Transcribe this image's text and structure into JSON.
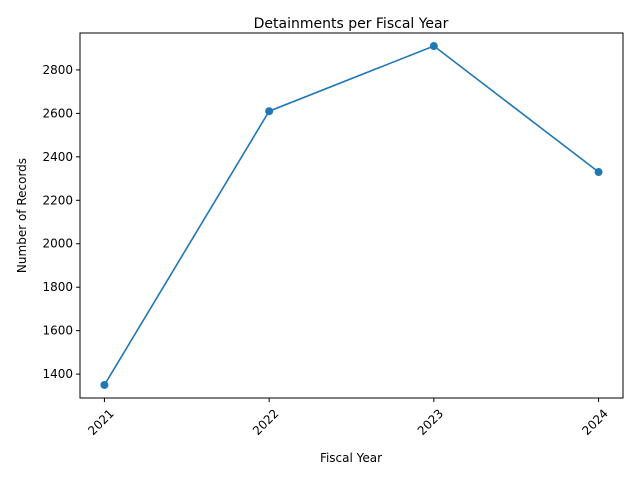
{
  "chart_data": {
    "type": "line",
    "title": "Detainments per Fiscal Year",
    "xlabel": "Fiscal Year",
    "ylabel": "Number of Records",
    "categories": [
      "2021",
      "2022",
      "2023",
      "2024"
    ],
    "series": [
      {
        "values": [
          1350,
          2610,
          2910,
          2330
        ],
        "color": "#1f77b4",
        "marker": "circle"
      }
    ],
    "ylim": [
      1290,
      2970
    ],
    "yticks": [
      1400,
      1600,
      1800,
      2000,
      2200,
      2400,
      2600,
      2800
    ],
    "xtick_rotation": 45,
    "grid": false,
    "legend": "none"
  }
}
